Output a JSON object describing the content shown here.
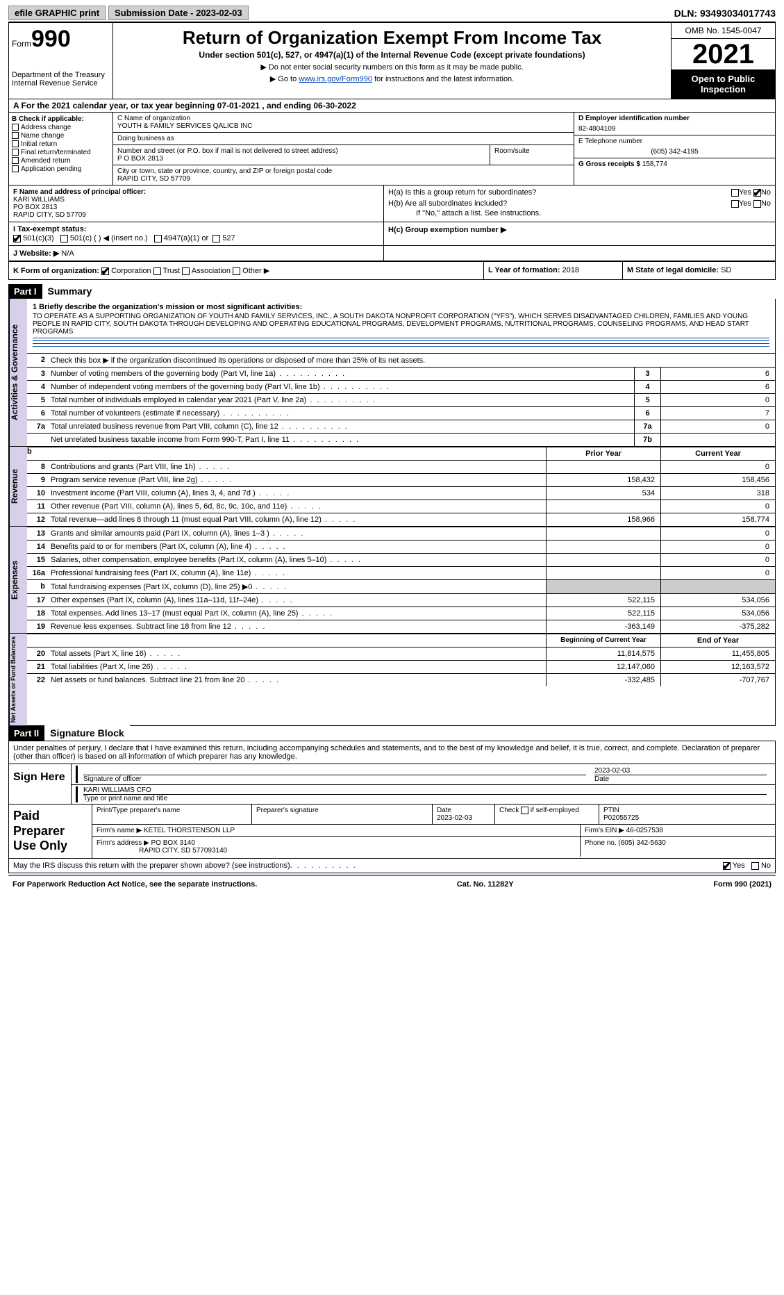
{
  "top": {
    "efile_label": "efile GRAPHIC print",
    "submission_label": "Submission Date - 2023-02-03",
    "dln": "DLN: 93493034017743"
  },
  "header": {
    "form_word": "Form",
    "form_number": "990",
    "dept": "Department of the Treasury",
    "irs": "Internal Revenue Service",
    "title": "Return of Organization Exempt From Income Tax",
    "subtitle": "Under section 501(c), 527, or 4947(a)(1) of the Internal Revenue Code (except private foundations)",
    "note1": "▶ Do not enter social security numbers on this form as it may be made public.",
    "note2_pre": "▶ Go to ",
    "note2_link": "www.irs.gov/Form990",
    "note2_post": " for instructions and the latest information.",
    "omb": "OMB No. 1545-0047",
    "year": "2021",
    "open": "Open to Public Inspection"
  },
  "row_a": "A For the 2021 calendar year, or tax year beginning 07-01-2021     , and ending 06-30-2022",
  "col_b": {
    "title": "B Check if applicable:",
    "items": [
      "Address change",
      "Name change",
      "Initial return",
      "Final return/terminated",
      "Amended return",
      "Application pending"
    ]
  },
  "col_c": {
    "name_label": "C Name of organization",
    "name": "YOUTH & FAMILY SERVICES QALICB INC",
    "dba_label": "Doing business as",
    "street_label": "Number and street (or P.O. box if mail is not delivered to street address)",
    "street": "P O BOX 2813",
    "room_label": "Room/suite",
    "city_label": "City or town, state or province, country, and ZIP or foreign postal code",
    "city": "RAPID CITY, SD  57709",
    "f_label": "F  Name and address of principal officer:",
    "f_name": "KARI WILLIAMS",
    "f_po": "PO BOX 2813",
    "f_city": "RAPID CITY, SD  57709"
  },
  "col_d": {
    "d_label": "D Employer identification number",
    "d_val": "82-4804109",
    "e_label": "E Telephone number",
    "e_val": "(605) 342-4195",
    "g_label": "G Gross receipts $",
    "g_val": "158,774"
  },
  "h": {
    "ha_label": "H(a)  Is this a group return for subordinates?",
    "hb_label": "H(b)  Are all subordinates included?",
    "hb_note": "If \"No,\" attach a list. See instructions.",
    "hc_label": "H(c)  Group exemption number ▶",
    "yes": "Yes",
    "no": "No"
  },
  "row_i": {
    "label": "I  Tax-exempt status:",
    "opt1": "501(c)(3)",
    "opt2": "501(c) (  ) ◀ (insert no.)",
    "opt3": "4947(a)(1) or",
    "opt4": "527"
  },
  "row_j": {
    "label": "J  Website: ▶",
    "val": "N/A"
  },
  "row_k": {
    "label": "K Form of organization:",
    "corp": "Corporation",
    "trust": "Trust",
    "assoc": "Association",
    "other": "Other ▶",
    "l_label": "L Year of formation:",
    "l_val": "2018",
    "m_label": "M State of legal domicile:",
    "m_val": "SD"
  },
  "part1": {
    "hdr": "Part I",
    "title": "Summary",
    "line1_label": "1  Briefly describe the organization's mission or most significant activities:",
    "mission": "TO OPERATE AS A SUPPORTING ORGANIZATION OF YOUTH AND FAMILY SERVICES, INC., A SOUTH DAKOTA NONPROFIT CORPORATION (\"YFS\"), WHICH SERVES DISADVANTAGED CHILDREN, FAMILIES AND YOUNG PEOPLE IN RAPID CITY, SOUTH DAKOTA THROUGH DEVELOPING AND OPERATING EDUCATIONAL PROGRAMS, DEVELOPMENT PROGRAMS, NUTRITIONAL PROGRAMS, COUNSELING PROGRAMS, AND HEAD START PROGRAMS",
    "line2": "Check this box ▶     if the organization discontinued its operations or disposed of more than 25% of its net assets.",
    "side_gov": "Activities & Governance",
    "side_rev": "Revenue",
    "side_exp": "Expenses",
    "side_net": "Net Assets or Fund Balances",
    "rows_gov": [
      {
        "n": "3",
        "d": "Number of voting members of the governing body (Part VI, line 1a)",
        "box": "3",
        "v": "6"
      },
      {
        "n": "4",
        "d": "Number of independent voting members of the governing body (Part VI, line 1b)",
        "box": "4",
        "v": "6"
      },
      {
        "n": "5",
        "d": "Total number of individuals employed in calendar year 2021 (Part V, line 2a)",
        "box": "5",
        "v": "0"
      },
      {
        "n": "6",
        "d": "Total number of volunteers (estimate if necessary)",
        "box": "6",
        "v": "7"
      },
      {
        "n": "7a",
        "d": "Total unrelated business revenue from Part VIII, column (C), line 12",
        "box": "7a",
        "v": "0"
      },
      {
        "n": "",
        "d": "Net unrelated business taxable income from Form 990-T, Part I, line 11",
        "box": "7b",
        "v": ""
      }
    ],
    "hdr_prior": "Prior Year",
    "hdr_current": "Current Year",
    "rows_rev": [
      {
        "n": "8",
        "d": "Contributions and grants (Part VIII, line 1h)",
        "p": "",
        "c": "0"
      },
      {
        "n": "9",
        "d": "Program service revenue (Part VIII, line 2g)",
        "p": "158,432",
        "c": "158,456"
      },
      {
        "n": "10",
        "d": "Investment income (Part VIII, column (A), lines 3, 4, and 7d )",
        "p": "534",
        "c": "318"
      },
      {
        "n": "11",
        "d": "Other revenue (Part VIII, column (A), lines 5, 6d, 8c, 9c, 10c, and 11e)",
        "p": "",
        "c": "0"
      },
      {
        "n": "12",
        "d": "Total revenue—add lines 8 through 11 (must equal Part VIII, column (A), line 12)",
        "p": "158,966",
        "c": "158,774"
      }
    ],
    "rows_exp": [
      {
        "n": "13",
        "d": "Grants and similar amounts paid (Part IX, column (A), lines 1–3 )",
        "p": "",
        "c": "0"
      },
      {
        "n": "14",
        "d": "Benefits paid to or for members (Part IX, column (A), line 4)",
        "p": "",
        "c": "0"
      },
      {
        "n": "15",
        "d": "Salaries, other compensation, employee benefits (Part IX, column (A), lines 5–10)",
        "p": "",
        "c": "0"
      },
      {
        "n": "16a",
        "d": "Professional fundraising fees (Part IX, column (A), line 11e)",
        "p": "",
        "c": "0"
      },
      {
        "n": "b",
        "d": "Total fundraising expenses (Part IX, column (D), line 25) ▶0",
        "p": "shaded",
        "c": "shaded"
      },
      {
        "n": "17",
        "d": "Other expenses (Part IX, column (A), lines 11a–11d, 11f–24e)",
        "p": "522,115",
        "c": "534,056"
      },
      {
        "n": "18",
        "d": "Total expenses. Add lines 13–17 (must equal Part IX, column (A), line 25)",
        "p": "522,115",
        "c": "534,056"
      },
      {
        "n": "19",
        "d": "Revenue less expenses. Subtract line 18 from line 12",
        "p": "-363,149",
        "c": "-375,282"
      }
    ],
    "hdr_begin": "Beginning of Current Year",
    "hdr_end": "End of Year",
    "rows_net": [
      {
        "n": "20",
        "d": "Total assets (Part X, line 16)",
        "p": "11,814,575",
        "c": "11,455,805"
      },
      {
        "n": "21",
        "d": "Total liabilities (Part X, line 26)",
        "p": "12,147,060",
        "c": "12,163,572"
      },
      {
        "n": "22",
        "d": "Net assets or fund balances. Subtract line 21 from line 20",
        "p": "-332,485",
        "c": "-707,767"
      }
    ]
  },
  "part2": {
    "hdr": "Part II",
    "title": "Signature Block",
    "decl": "Under penalties of perjury, I declare that I have examined this return, including accompanying schedules and statements, and to the best of my knowledge and belief, it is true, correct, and complete. Declaration of preparer (other than officer) is based on all information of which preparer has any knowledge.",
    "sign_here": "Sign Here",
    "sig_officer": "Signature of officer",
    "date": "Date",
    "date_val": "2023-02-03",
    "name_title": "KARI WILLIAMS CFO",
    "type_label": "Type or print name and title",
    "paid": "Paid Preparer Use Only",
    "prep_name_label": "Print/Type preparer's name",
    "prep_sig_label": "Preparer's signature",
    "prep_date_label": "Date",
    "prep_date": "2023-02-03",
    "check_self": "Check         if self-employed",
    "ptin_label": "PTIN",
    "ptin": "P02055725",
    "firm_name_label": "Firm's name    ▶",
    "firm_name": "KETEL THORSTENSON LLP",
    "firm_ein_label": "Firm's EIN ▶",
    "firm_ein": "46-0257538",
    "firm_addr_label": "Firm's address ▶",
    "firm_addr": "PO BOX 3140",
    "firm_city": "RAPID CITY, SD  577093140",
    "phone_label": "Phone no.",
    "phone": "(605) 342-5630",
    "may_irs": "May the IRS discuss this return with the preparer shown above? (see instructions)",
    "yes": "Yes",
    "no": "No"
  },
  "footer": {
    "pra": "For Paperwork Reduction Act Notice, see the separate instructions.",
    "cat": "Cat. No. 11282Y",
    "form": "Form 990 (2021)"
  }
}
